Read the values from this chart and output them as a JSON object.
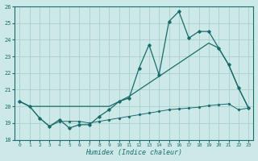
{
  "xlabel": "Humidex (Indice chaleur)",
  "xlim": [
    -0.5,
    23.5
  ],
  "ylim": [
    18,
    26
  ],
  "xticks": [
    0,
    1,
    2,
    3,
    4,
    5,
    6,
    7,
    8,
    9,
    10,
    11,
    12,
    13,
    14,
    15,
    16,
    17,
    18,
    19,
    20,
    21,
    22,
    23
  ],
  "yticks": [
    18,
    19,
    20,
    21,
    22,
    23,
    24,
    25,
    26
  ],
  "bg_color": "#cce9e8",
  "grid_color": "#aacfce",
  "line_color": "#1a6b6b",
  "line1_x": [
    0,
    1,
    2,
    3,
    4,
    5,
    6,
    7,
    8,
    9,
    10,
    11,
    12,
    13,
    14,
    15,
    16,
    17,
    18,
    19,
    20,
    21,
    22,
    23
  ],
  "line1_y": [
    20.3,
    20.0,
    19.3,
    18.8,
    19.2,
    18.7,
    18.9,
    18.9,
    19.4,
    19.8,
    20.3,
    20.5,
    22.3,
    23.7,
    21.9,
    25.1,
    25.7,
    24.1,
    24.5,
    24.5,
    23.5,
    22.5,
    21.1,
    19.9
  ],
  "line2_x": [
    0,
    1,
    2,
    9,
    10,
    11,
    12,
    13,
    14,
    15,
    16,
    17,
    18,
    19,
    20,
    21,
    22,
    23
  ],
  "line2_y": [
    20.3,
    20.0,
    20.0,
    20.0,
    20.3,
    20.6,
    21.0,
    21.4,
    21.8,
    22.2,
    22.6,
    23.0,
    23.4,
    23.8,
    23.5,
    22.5,
    21.1,
    19.9
  ],
  "line3_x": [
    0,
    1,
    2,
    3,
    4,
    5,
    6,
    7,
    8,
    9,
    10,
    11,
    12,
    13,
    14,
    15,
    16,
    17,
    18,
    19,
    20,
    21,
    22,
    23
  ],
  "line3_y": [
    20.3,
    20.0,
    19.3,
    18.8,
    19.1,
    19.1,
    19.1,
    19.0,
    19.1,
    19.2,
    19.3,
    19.4,
    19.5,
    19.6,
    19.7,
    19.8,
    19.85,
    19.9,
    19.95,
    20.05,
    20.1,
    20.15,
    19.8,
    19.9
  ]
}
